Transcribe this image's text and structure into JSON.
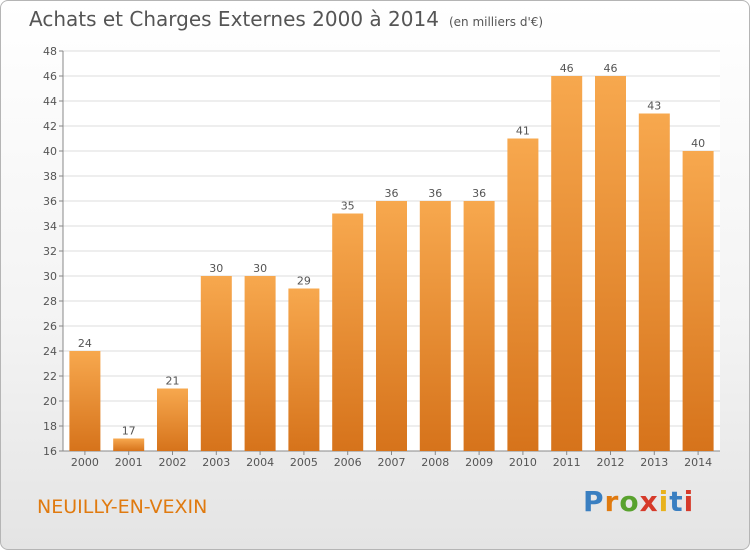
{
  "title": "Achats et Charges Externes 2000 à 2014",
  "subtitle": "(en milliers d'€)",
  "place": "NEUILLY-EN-VEXIN",
  "logo": {
    "text": "Proxiti",
    "letter_colors": [
      "#3a7fc1",
      "#e07a0f",
      "#59a22e",
      "#d63a2a",
      "#e8b21c",
      "#3a7fc1",
      "#d63a2a"
    ]
  },
  "colors": {
    "bar_light": "#f7a84e",
    "bar_dark": "#d6731b",
    "label": "#555555",
    "grid": "#dddddd"
  },
  "chart_data": {
    "type": "bar",
    "categories": [
      "2000",
      "2001",
      "2002",
      "2003",
      "2004",
      "2005",
      "2006",
      "2007",
      "2008",
      "2009",
      "2010",
      "2011",
      "2012",
      "2013",
      "2014"
    ],
    "values": [
      24,
      17,
      21,
      30,
      30,
      29,
      35,
      36,
      36,
      36,
      41,
      46,
      46,
      43,
      40
    ],
    "ylim": [
      16,
      48
    ],
    "yticks": [
      16,
      18,
      20,
      22,
      24,
      26,
      28,
      30,
      32,
      34,
      36,
      38,
      40,
      42,
      44,
      46,
      48
    ],
    "grid": true,
    "data_labels": true
  }
}
